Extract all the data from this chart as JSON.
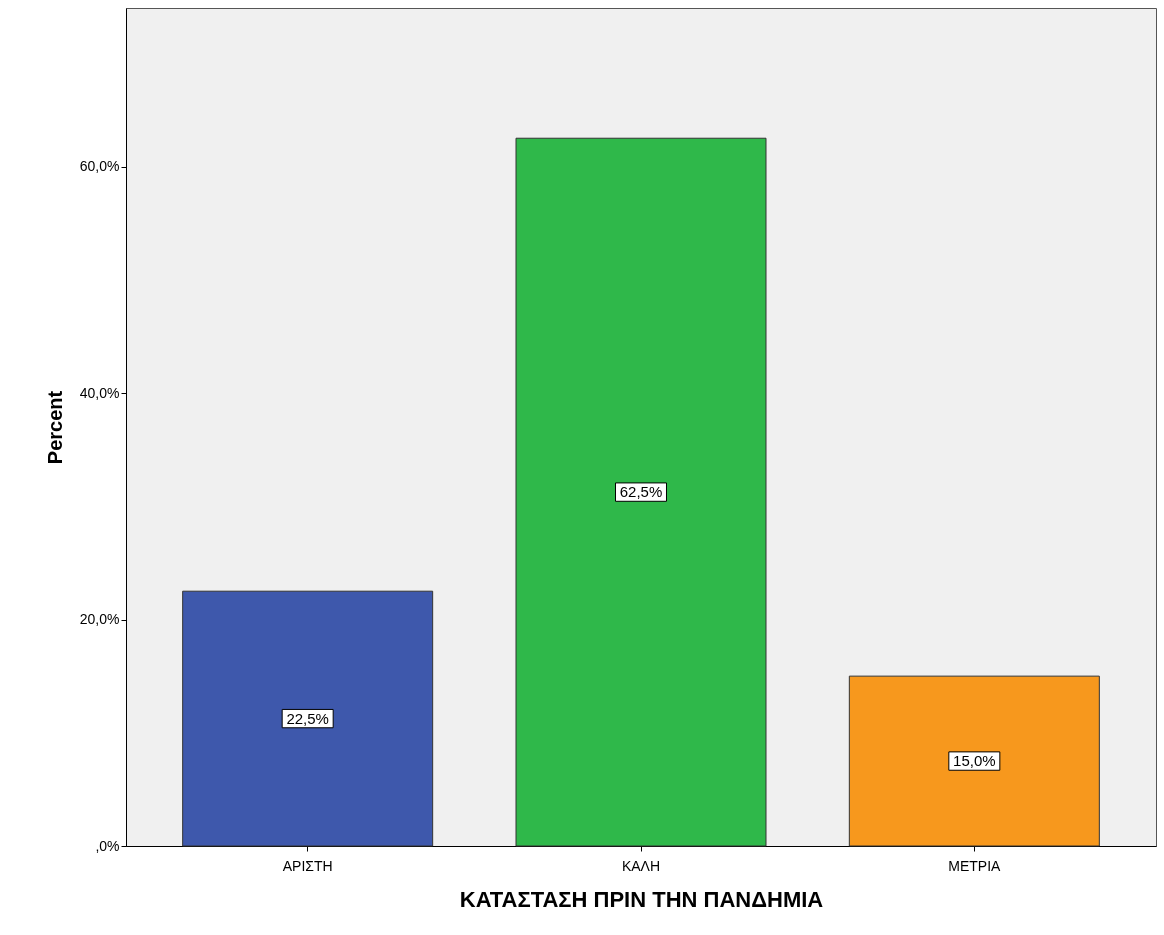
{
  "chart_data": {
    "type": "bar",
    "xlabel": "ΚΑΤΑΣΤΑΣΗ ΠΡΙΝ ΤΗΝ ΠΑΝΔΗΜΙΑ",
    "ylabel": "Percent",
    "categories": [
      "ΑΡΙΣΤΗ",
      "ΚΑΛΗ",
      "ΜΕΤΡΙΑ"
    ],
    "values": [
      22.5,
      62.5,
      15.0
    ],
    "colors": [
      "#3e58ac",
      "#2fb84a",
      "#f7981d"
    ],
    "value_labels": [
      "22,5%",
      "62,5%",
      "15,0%"
    ],
    "ylim": [
      0,
      74
    ],
    "yticks": [
      {
        "value": 0,
        "label": ",0%"
      },
      {
        "value": 20,
        "label": "20,0%"
      },
      {
        "value": 40,
        "label": "40,0%"
      },
      {
        "value": 60,
        "label": "60,0%"
      }
    ],
    "grid": false
  }
}
